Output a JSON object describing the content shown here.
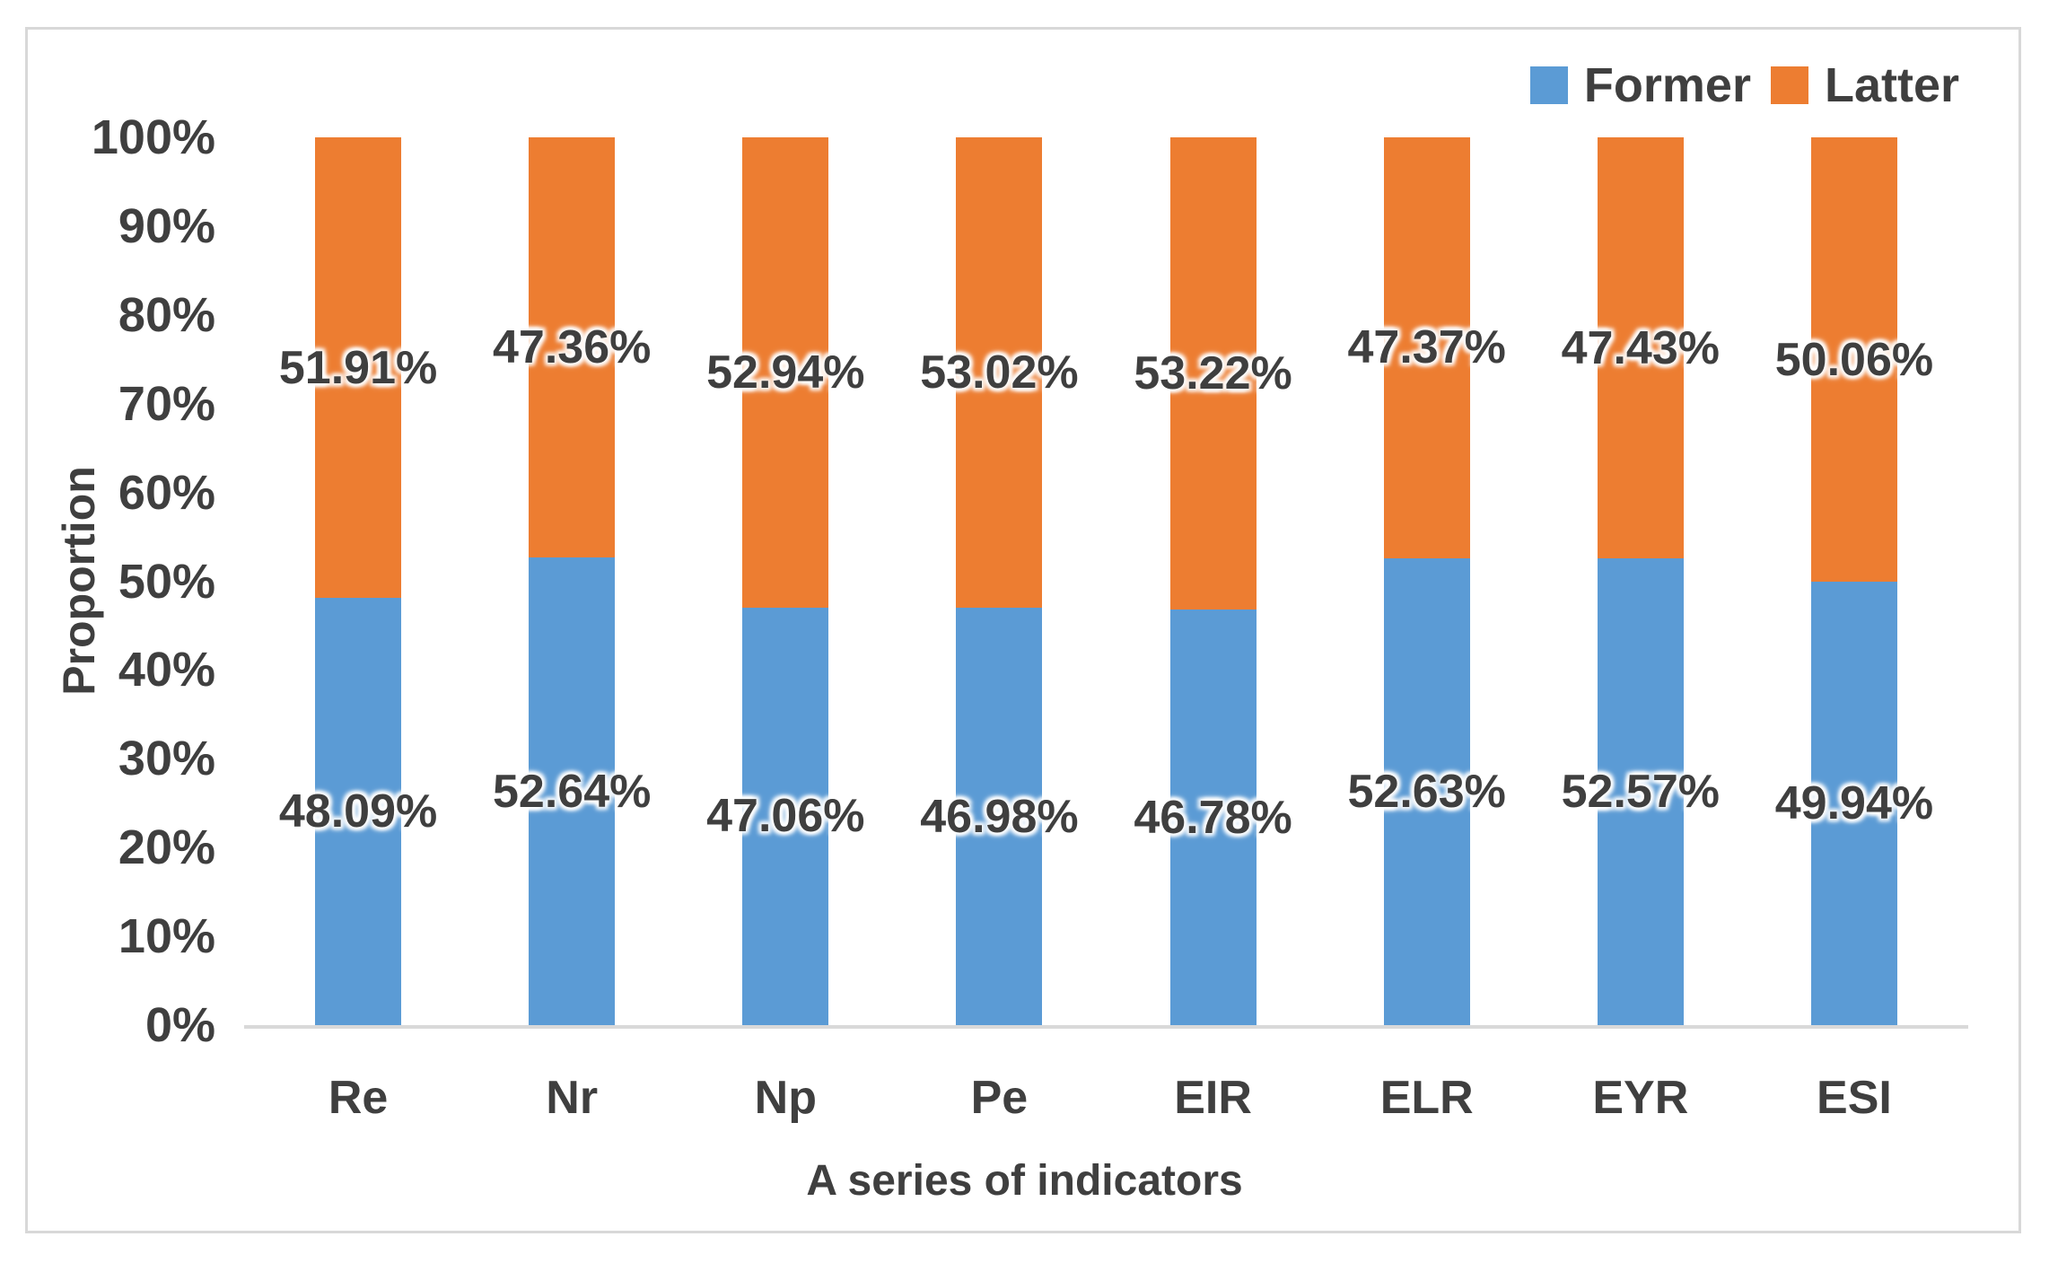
{
  "chart_data": {
    "type": "bar",
    "variant": "stacked-100-percent",
    "title": "",
    "xlabel": "A series of indicators",
    "ylabel": "Proportion",
    "categories": [
      "Re",
      "Nr",
      "Np",
      "Pe",
      "EIR",
      "ELR",
      "EYR",
      "ESI"
    ],
    "series": [
      {
        "name": "Former",
        "color": "#5B9BD5",
        "values": [
          48.09,
          52.64,
          47.06,
          46.98,
          46.78,
          52.63,
          52.57,
          49.94
        ],
        "labels": [
          "48.09%",
          "52.64%",
          "47.06%",
          "46.98%",
          "46.78%",
          "52.63%",
          "52.57%",
          "49.94%"
        ]
      },
      {
        "name": "Latter",
        "color": "#ED7D31",
        "values": [
          51.91,
          47.36,
          52.94,
          53.02,
          53.22,
          47.37,
          47.43,
          50.06
        ],
        "labels": [
          "51.91%",
          "47.36%",
          "52.94%",
          "53.02%",
          "53.22%",
          "47.37%",
          "47.43%",
          "50.06%"
        ]
      }
    ],
    "ylim": [
      0,
      100
    ],
    "ytick_labels": [
      "0%",
      "10%",
      "20%",
      "30%",
      "40%",
      "50%",
      "60%",
      "70%",
      "80%",
      "90%",
      "100%"
    ],
    "grid": false,
    "legend_position": "top-right",
    "text_color": "#3F3F3F",
    "axis_line_color": "#D9D9D9",
    "frame_border_color": "#D8D8D8"
  }
}
